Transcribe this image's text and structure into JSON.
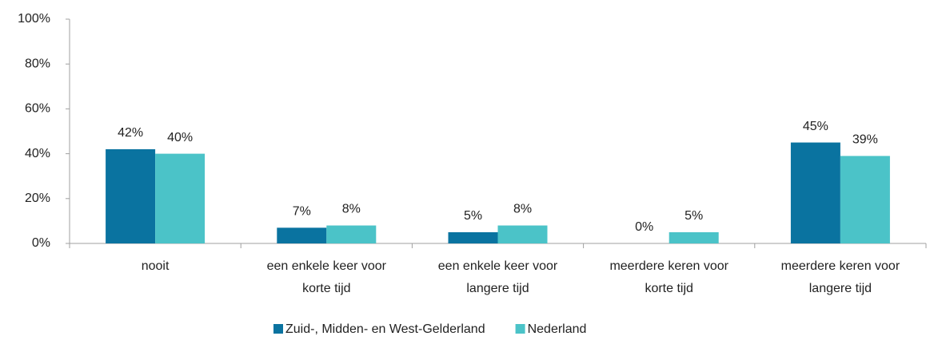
{
  "chart_data": {
    "type": "bar",
    "categories": [
      [
        "nooit"
      ],
      [
        "een enkele keer voor",
        "korte tijd"
      ],
      [
        "een enkele keer voor",
        "langere tijd"
      ],
      [
        "meerdere keren voor",
        "korte tijd"
      ],
      [
        "meerdere keren voor",
        "langere tijd"
      ]
    ],
    "series": [
      {
        "name": "Zuid-, Midden- en West-Gelderland",
        "color": "#0a73a0",
        "values": [
          42,
          7,
          5,
          0,
          45
        ],
        "value_labels": [
          "42%",
          "7%",
          "5%",
          "0%",
          "45%"
        ]
      },
      {
        "name": "Nederland",
        "color": "#4bc3c8",
        "values": [
          40,
          8,
          8,
          5,
          39
        ],
        "value_labels": [
          "40%",
          "8%",
          "8%",
          "5%",
          "39%"
        ]
      }
    ],
    "ylim": [
      0,
      100
    ],
    "yticks": [
      {
        "value": 0,
        "label": "0%"
      },
      {
        "value": 20,
        "label": "20%"
      },
      {
        "value": 40,
        "label": "40%"
      },
      {
        "value": 60,
        "label": "60%"
      },
      {
        "value": 80,
        "label": "80%"
      },
      {
        "value": 100,
        "label": "100%"
      }
    ],
    "legend": "bottom"
  }
}
